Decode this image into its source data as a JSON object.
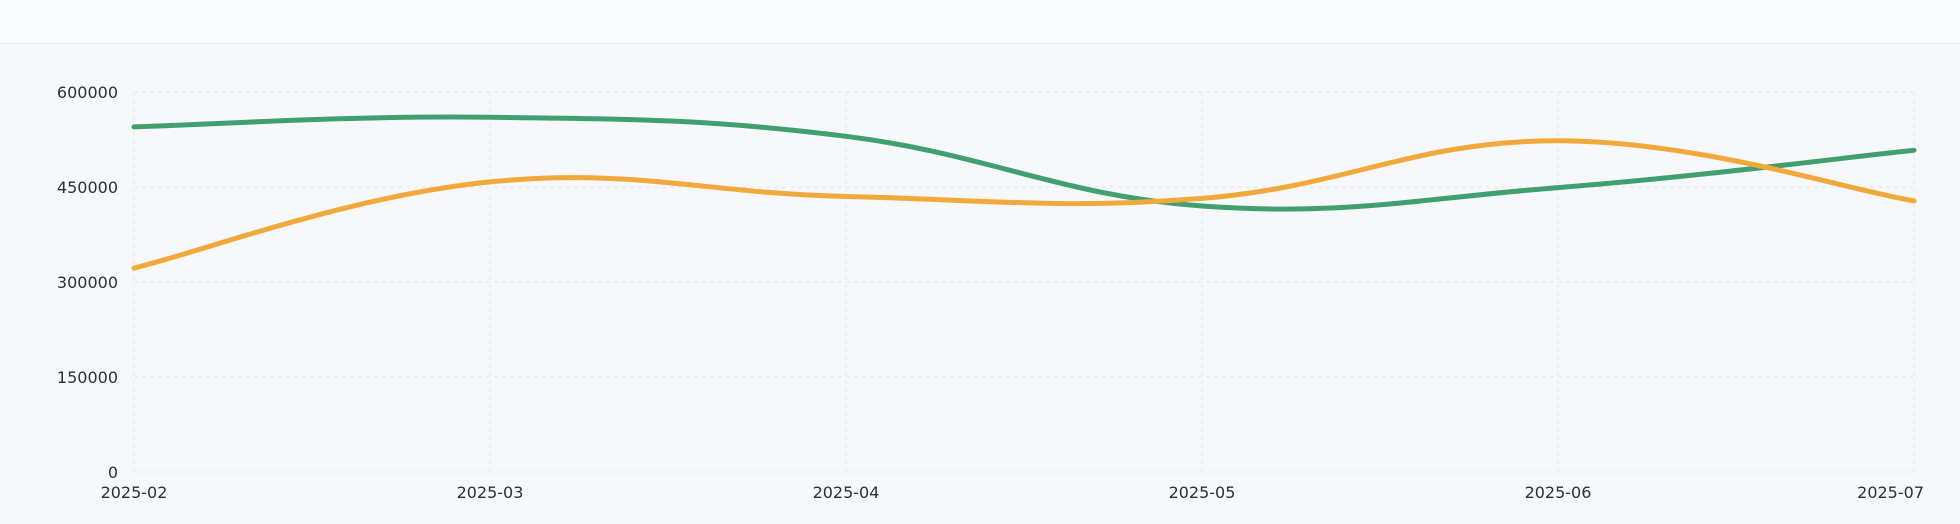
{
  "page": {
    "background": "#f7f8fb",
    "topbar_background": "#fafbfe",
    "divider_color": "#e8eaf0"
  },
  "chart_data": {
    "type": "line",
    "title": "",
    "xlabel": "",
    "ylabel": "",
    "categories": [
      "2025-02",
      "2025-03",
      "2025-04",
      "2025-05",
      "2025-06",
      "2025-07"
    ],
    "series": [
      {
        "name": "green",
        "color": "#42a070",
        "values": [
          545000,
          560000,
          530000,
          420000,
          449000,
          508000
        ]
      },
      {
        "name": "orange",
        "color": "#f2a93b",
        "values": [
          322000,
          458000,
          435000,
          432000,
          523000,
          428000
        ]
      }
    ],
    "ylim": [
      0,
      600000
    ],
    "y_ticks": [
      0,
      150000,
      300000,
      450000,
      600000
    ],
    "y_tick_labels": [
      "0",
      "150000",
      "300000",
      "450000",
      "600000"
    ],
    "grid": "dashed",
    "legend": "none",
    "smooth": true,
    "line_width": 5,
    "grid_color": "#e3e6ed",
    "axis_text_color": "#2a303a"
  }
}
